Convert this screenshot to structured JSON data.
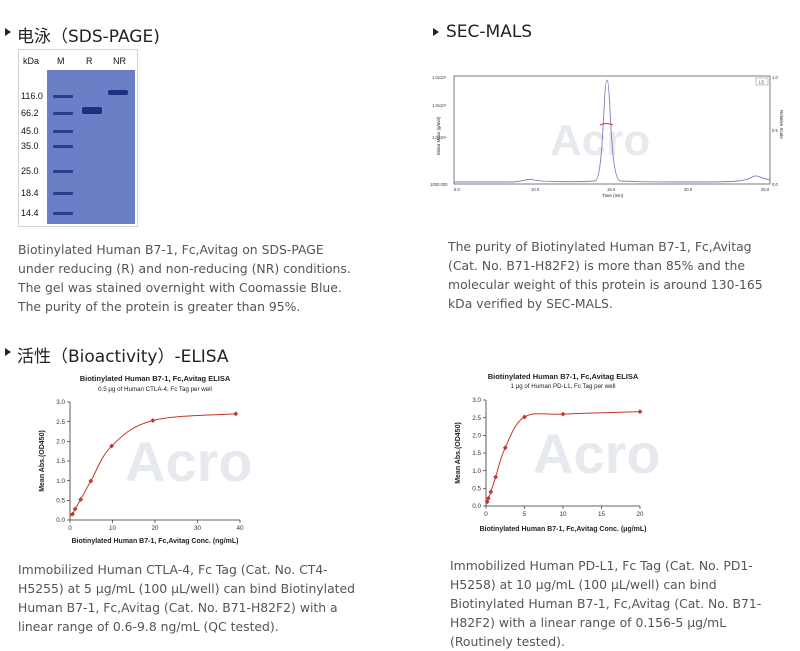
{
  "sections": {
    "sds": {
      "title": "电泳（SDS-PAGE)",
      "gel": {
        "kda_label": "kDa",
        "lanes": [
          "M",
          "R",
          "NR"
        ],
        "markers": [
          "116.0",
          "66.2",
          "45.0",
          "35.0",
          "25.0",
          "18.4",
          "14.4"
        ]
      },
      "desc": "Biotinylated Human B7-1, Fc,Avitag on SDS-PAGE under reducing (R) and non-reducing (NR) conditions. The gel was stained overnight with Coomassie Blue. The purity of the protein is greater than 95%."
    },
    "mals": {
      "title": "SEC-MALS",
      "chart": {
        "ylabel_left": "Molar Mass (g/mol)",
        "ylabel_right": "Relative Scale",
        "xlabel": "Time (min)",
        "y_left_ticks": [
          "1.0x10⁶",
          "1.0x10⁵",
          "1.0x10⁴",
          "1000.000"
        ],
        "y_right_ticks": [
          "1.0",
          "0.5",
          "0.0"
        ],
        "x_ticks": [
          "5.0",
          "10.0",
          "15.0",
          "20.0",
          "25.0"
        ],
        "legend": "LS"
      },
      "desc": "The purity of Biotinylated Human B7-1, Fc,Avitag (Cat. No. B71-H82F2) is more than 85% and the molecular weight of this protein is around 130-165 kDa verified by SEC-MALS."
    },
    "elisa": {
      "title": "活性（Bioactivity）-ELISA",
      "desc1": "Immobilized Human CTLA-4, Fc Tag (Cat. No. CT4-H5255) at 5 μg/mL (100 μL/well) can bind Biotinylated Human B7-1, Fc,Avitag (Cat. No. B71-H82F2) with a linear range of 0.6-9.8 ng/mL (QC tested).",
      "desc2": "Immobilized Human PD-L1, Fc Tag (Cat. No. PD1-H5258) at 10 μg/mL (100 μL/well) can bind Biotinylated Human B7-1, Fc,Avitag (Cat. No. B71-H82F2) with a linear range of 0.156-5 μg/mL (Routinely tested)."
    }
  },
  "watermark": "Acro",
  "chart_data": [
    {
      "type": "scatter",
      "title": "Biotinylated Human B7-1, Fc,Avitag ELISA",
      "subtitle": "0.5 μg of Human CTLA-4, Fc Tag per well",
      "xlabel": "Biotinylated Human B7-1, Fc,Avitag Conc. (ng/mL)",
      "ylabel": "Mean Abs.(OD450)",
      "xlim": [
        0,
        40
      ],
      "ylim": [
        0,
        3.0
      ],
      "x_ticks": [
        0,
        10,
        20,
        30,
        40
      ],
      "y_ticks": [
        0.0,
        0.5,
        1.0,
        1.5,
        2.0,
        2.5,
        3.0
      ],
      "x": [
        0.6,
        1.2,
        2.5,
        4.9,
        9.8,
        19.5,
        39
      ],
      "y": [
        0.15,
        0.28,
        0.52,
        0.99,
        1.88,
        2.53,
        2.7
      ],
      "fit_curve": true,
      "grid": false
    },
    {
      "type": "scatter",
      "title": "Biotinylated Human B7-1, Fc,Avitag ELISA",
      "subtitle": "1 μg of Human PD-L1, Fc Tag per well",
      "xlabel": "Biotinylated Human B7-1, Fc,Avitag Conc. (μg/mL)",
      "ylabel": "Mean Abs.(OD450)",
      "xlim": [
        0,
        20
      ],
      "ylim": [
        0,
        3.0
      ],
      "x_ticks": [
        0,
        5,
        10,
        15,
        20
      ],
      "y_ticks": [
        0.0,
        0.5,
        1.0,
        1.5,
        2.0,
        2.5,
        3.0
      ],
      "x": [
        0.156,
        0.313,
        0.625,
        1.25,
        2.5,
        5,
        10,
        20
      ],
      "y": [
        0.12,
        0.22,
        0.4,
        0.82,
        1.65,
        2.52,
        2.6,
        2.67
      ],
      "fit_curve": true,
      "grid": false
    }
  ]
}
